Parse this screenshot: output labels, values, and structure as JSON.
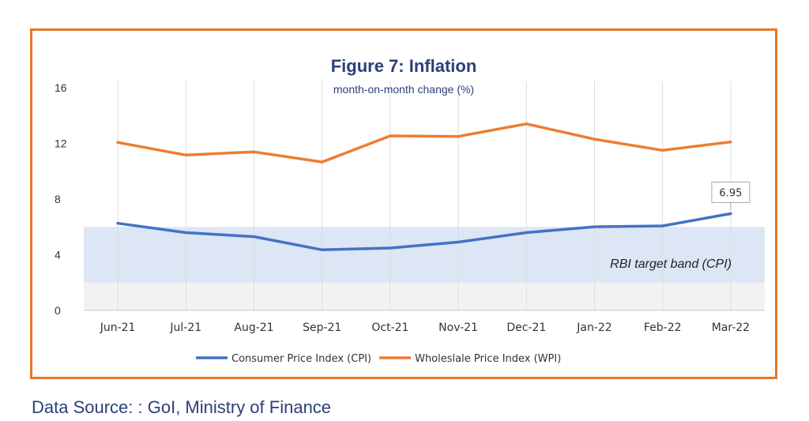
{
  "source_note": "Data Source: : GoI, Ministry of Finance",
  "colors": {
    "frame": "#e9772b",
    "title": "#2b3f7a",
    "cpi": "#4472c4",
    "wpi": "#ed7d31",
    "band": "#dce6f5",
    "background_band": "#f2f2f2"
  },
  "chart_data": {
    "type": "line",
    "title": "Figure 7: Inflation",
    "subtitle": "month-on-month change (%)",
    "categories": [
      "Jun-21",
      "Jul-21",
      "Aug-21",
      "Sep-21",
      "Oct-21",
      "Nov-21",
      "Dec-21",
      "Jan-22",
      "Feb-22",
      "Mar-22"
    ],
    "series": [
      {
        "name": "Consumer Price Index (CPI)",
        "color": "#4472c4",
        "values": [
          6.26,
          5.59,
          5.3,
          4.35,
          4.48,
          4.91,
          5.59,
          6.01,
          6.07,
          6.95
        ]
      },
      {
        "name": "Wholeslale Price Index (WPI)",
        "color": "#ed7d31",
        "values": [
          12.07,
          11.16,
          11.39,
          10.66,
          12.54,
          12.5,
          13.4,
          12.3,
          11.5,
          12.1
        ]
      }
    ],
    "ylim": [
      0,
      16
    ],
    "yticks": [
      0,
      4,
      8,
      12,
      16
    ],
    "xlabel": "",
    "ylabel": "",
    "grid": "vertical",
    "legend_position": "bottom",
    "target_band": {
      "label": "RBI target band (CPI)",
      "range": [
        2,
        6
      ]
    },
    "annotation": {
      "label": "6.95",
      "series": 0,
      "point": 9
    }
  }
}
